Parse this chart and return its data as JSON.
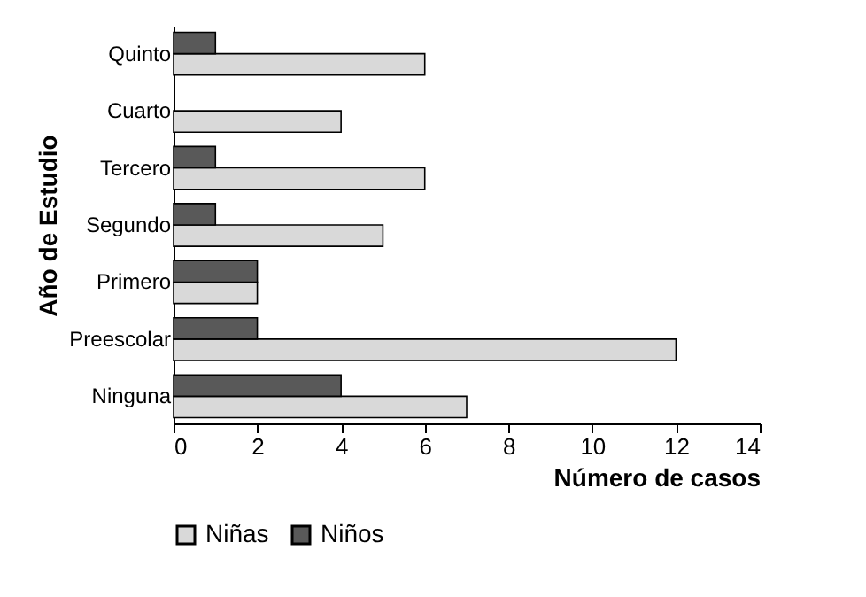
{
  "chart_data": {
    "type": "bar",
    "orientation": "horizontal",
    "ylabel": "Año de Estudio",
    "xlabel": "Número de casos",
    "categories": [
      "Quinto",
      "Cuarto",
      "Tercero",
      "Segundo",
      "Primero",
      "Preescolar",
      "Ninguna"
    ],
    "series": [
      {
        "name": "Niñas",
        "color": "#d9d9d9",
        "values": [
          6,
          4,
          6,
          5,
          2,
          12,
          7
        ]
      },
      {
        "name": "Niños",
        "color": "#595959",
        "values": [
          1,
          null,
          1,
          1,
          2,
          2,
          4
        ]
      }
    ],
    "xlim": [
      0,
      14
    ],
    "xticks": [
      0,
      2,
      4,
      6,
      8,
      10,
      12,
      14
    ],
    "grid": false,
    "legend": "bottom"
  }
}
